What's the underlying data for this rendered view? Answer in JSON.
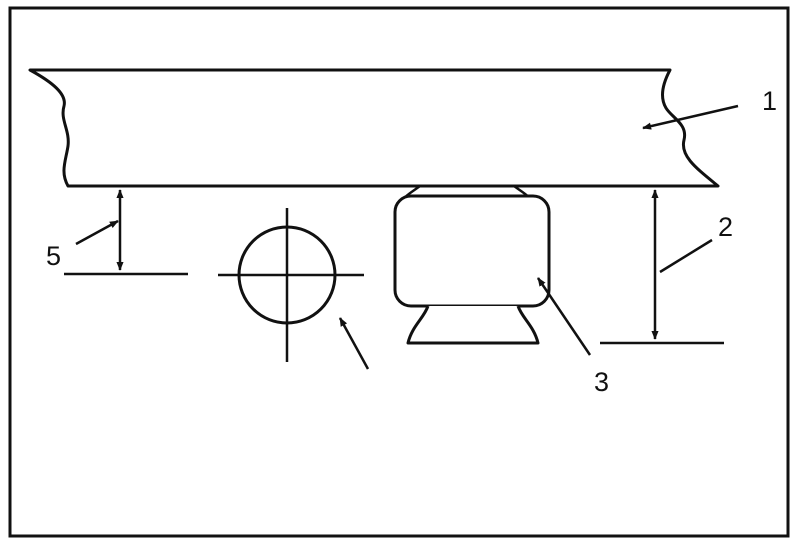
{
  "diagram": {
    "stroke_color": "#111111",
    "background_color": "#ffffff",
    "callouts": {
      "c1": "1",
      "c2": "2",
      "c3": "3",
      "c5": "5"
    }
  }
}
